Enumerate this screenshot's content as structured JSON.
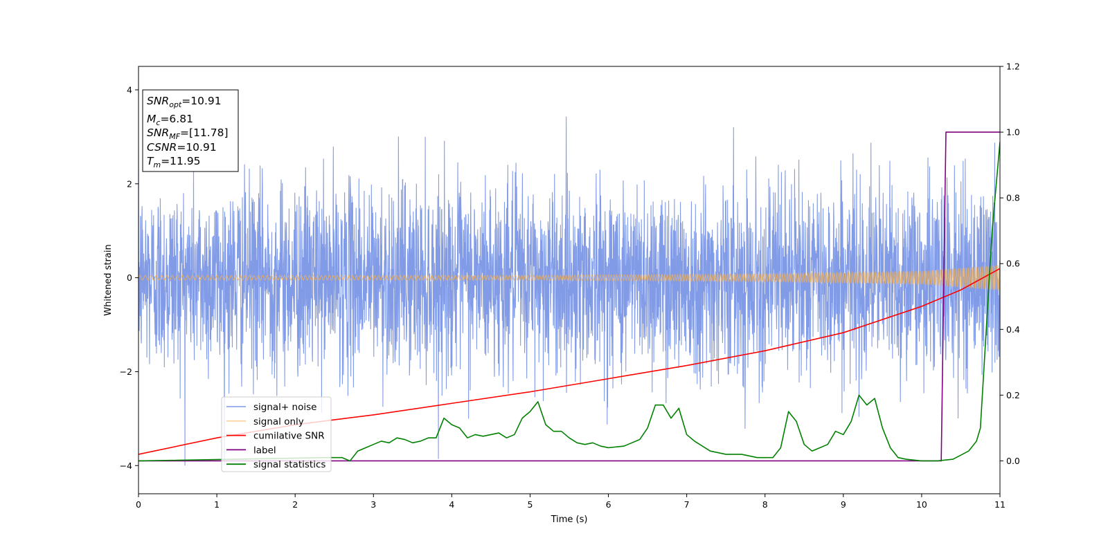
{
  "chart_data": {
    "type": "line",
    "xlabel": "Time (s)",
    "ylabel": "Whitened strain",
    "xlim": [
      0,
      11
    ],
    "ylim": [
      -4.6,
      4.5
    ],
    "y2lim": [
      -0.1,
      1.2
    ],
    "x_ticks": [
      "0",
      "1",
      "2",
      "3",
      "4",
      "5",
      "6",
      "7",
      "8",
      "9",
      "10",
      "11"
    ],
    "y_ticks": [
      "−4",
      "−2",
      "0",
      "2",
      "4"
    ],
    "y2_ticks": [
      "0.0",
      "0.2",
      "0.4",
      "0.6",
      "0.8",
      "1.0",
      "1.2"
    ],
    "grid": false,
    "legend_position": "lower-left",
    "info_box": [
      {
        "sym": "SNR",
        "sub": "opt",
        "val": "=10.91"
      },
      {
        "sym": "M",
        "sub": "c",
        "val": "=6.81"
      },
      {
        "sym": "SNR",
        "sub": "MF",
        "val": "=[11.78]"
      },
      {
        "sym": "CSNR",
        "sub": "",
        "val": "=10.91"
      },
      {
        "sym": "T",
        "sub": "m",
        "val": "=11.95"
      }
    ],
    "series": [
      {
        "name": "signal+ noise",
        "axis": "left",
        "color": "#7a96e6",
        "description_values": {
          "amplitude_std": 1.0,
          "peak": 4.1,
          "trough": -4.0
        }
      },
      {
        "name": "signal only",
        "axis": "left",
        "color": "#f5b050",
        "envelope": {
          "x": [
            0,
            5,
            8,
            10,
            11
          ],
          "amplitude": [
            0.05,
            0.05,
            0.08,
            0.14,
            0.27
          ]
        }
      },
      {
        "name": "cumilative SNR",
        "axis": "right",
        "color": "#ff0000",
        "x": [
          0,
          1,
          2,
          3,
          4,
          5,
          6,
          7,
          8,
          9,
          10,
          10.5,
          11
        ],
        "values": [
          0.02,
          0.07,
          0.11,
          0.14,
          0.175,
          0.21,
          0.25,
          0.29,
          0.335,
          0.39,
          0.47,
          0.52,
          0.585
        ]
      },
      {
        "name": "label",
        "axis": "right",
        "color": "#800080",
        "x": [
          0,
          10.25,
          10.31,
          11
        ],
        "values": [
          0.0,
          0.0,
          1.0,
          1.0
        ]
      },
      {
        "name": "signal statistics",
        "axis": "right",
        "color": "#008000",
        "x": [
          0,
          2.4,
          2.6,
          2.7,
          2.8,
          2.9,
          3.0,
          3.1,
          3.2,
          3.3,
          3.4,
          3.5,
          3.6,
          3.7,
          3.8,
          3.9,
          4.0,
          4.1,
          4.2,
          4.3,
          4.4,
          4.5,
          4.6,
          4.7,
          4.8,
          4.9,
          5.0,
          5.1,
          5.2,
          5.3,
          5.4,
          5.5,
          5.6,
          5.7,
          5.8,
          5.9,
          6.0,
          6.2,
          6.4,
          6.5,
          6.6,
          6.7,
          6.8,
          6.9,
          7.0,
          7.1,
          7.3,
          7.5,
          7.7,
          7.9,
          8.1,
          8.2,
          8.3,
          8.4,
          8.5,
          8.6,
          8.7,
          8.8,
          8.9,
          9.0,
          9.1,
          9.2,
          9.3,
          9.4,
          9.5,
          9.6,
          9.7,
          9.8,
          10.0,
          10.2,
          10.4,
          10.6,
          10.7,
          10.75,
          10.8,
          10.85,
          10.9,
          11.0
        ],
        "values": [
          0.0,
          0.01,
          0.01,
          0.0,
          0.03,
          0.04,
          0.05,
          0.06,
          0.055,
          0.07,
          0.065,
          0.055,
          0.06,
          0.07,
          0.07,
          0.13,
          0.11,
          0.1,
          0.07,
          0.08,
          0.075,
          0.08,
          0.085,
          0.07,
          0.08,
          0.13,
          0.15,
          0.18,
          0.11,
          0.09,
          0.09,
          0.07,
          0.055,
          0.05,
          0.055,
          0.045,
          0.04,
          0.045,
          0.065,
          0.1,
          0.17,
          0.17,
          0.13,
          0.16,
          0.08,
          0.06,
          0.03,
          0.02,
          0.02,
          0.01,
          0.01,
          0.04,
          0.15,
          0.12,
          0.05,
          0.03,
          0.04,
          0.05,
          0.09,
          0.08,
          0.12,
          0.2,
          0.17,
          0.19,
          0.1,
          0.04,
          0.01,
          0.005,
          0.0,
          0.0,
          0.005,
          0.03,
          0.06,
          0.1,
          0.3,
          0.5,
          0.7,
          0.97
        ]
      }
    ]
  }
}
